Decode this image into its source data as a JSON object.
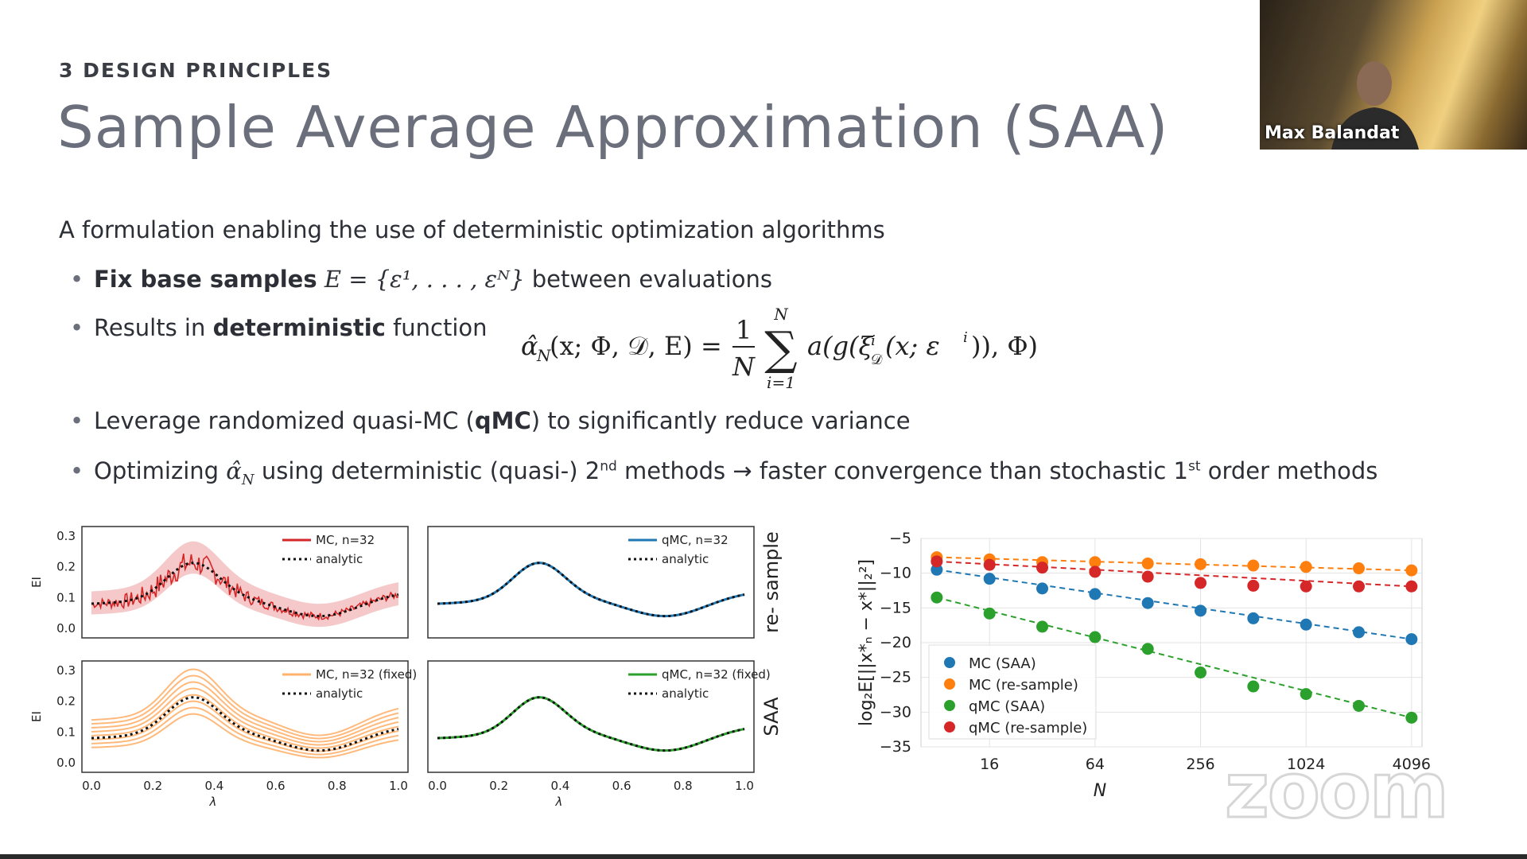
{
  "slide": {
    "section": "3  DESIGN PRINCIPLES",
    "title": "Sample Average Approximation (SAA)",
    "intro": "A formulation enabling the use of deterministic optimization algorithms",
    "bullets": [
      {
        "bold": "Fix base samples",
        "math": "E = {ε¹, . . . , εᴺ}",
        "rest": " between evaluations"
      },
      {
        "pre": "Results in ",
        "bold": "deterministic",
        "rest": " function"
      },
      {
        "pre": "Leverage randomized quasi-MC (",
        "bold": "qMC",
        "rest": ") to significantly reduce variance"
      },
      {
        "pre": "Optimizing ",
        "math": "α̂",
        "sub": "N",
        "mid": " using deterministic (quasi-) 2",
        "sup1": "nd",
        "mid2": "  methods → faster convergence than stochastic 1",
        "sup2": "st",
        "rest": " order methods"
      }
    ],
    "formula": {
      "lhs": "α̂",
      "lhs_sub": "N",
      "args": "(x; Φ, 𝒟, E) =",
      "frac_num": "1",
      "frac_den": "N",
      "sum_top": "N",
      "sum_bot": "i=1",
      "body": "a(g(ξ",
      "body_sup": "i",
      "body_sub": "𝒟",
      "body_rest": "(x; ε",
      "body_sup2": "i",
      "body_end": ")), Φ)"
    }
  },
  "video": {
    "name": "Max Balandat"
  },
  "watermark": "zoom",
  "chart_data": [
    {
      "type": "line",
      "panel": "top-left",
      "ylabel": "EI",
      "xlim": [
        0,
        1
      ],
      "ylim": [
        0,
        0.3
      ],
      "yticks": [
        "0.0",
        "0.1",
        "0.2",
        "0.3"
      ],
      "legend": [
        "MC, n=32",
        "analytic"
      ],
      "color": "#d62728"
    },
    {
      "type": "line",
      "panel": "top-right",
      "xlim": [
        0,
        1
      ],
      "ylim": [
        0,
        0.3
      ],
      "legend": [
        "qMC, n=32",
        "analytic"
      ],
      "side_label": "re- sample",
      "color": "#1f77b4"
    },
    {
      "type": "line",
      "panel": "bottom-left",
      "ylabel": "EI",
      "xlabel": "λ",
      "xlim": [
        0,
        1
      ],
      "ylim": [
        0,
        0.3
      ],
      "xticks": [
        "0.0",
        "0.2",
        "0.4",
        "0.6",
        "0.8",
        "1.0"
      ],
      "yticks": [
        "0.0",
        "0.1",
        "0.2",
        "0.3"
      ],
      "legend": [
        "MC, n=32 (fixed)",
        "analytic"
      ],
      "color": "#ff7f0e"
    },
    {
      "type": "line",
      "panel": "bottom-right",
      "xlabel": "λ",
      "xlim": [
        0,
        1
      ],
      "ylim": [
        0,
        0.3
      ],
      "xticks": [
        "0.0",
        "0.2",
        "0.4",
        "0.6",
        "0.8",
        "1.0"
      ],
      "legend": [
        "qMC, n=32 (fixed)",
        "analytic"
      ],
      "side_label": "SAA",
      "color": "#2ca02c"
    },
    {
      "type": "scatter",
      "panel": "convergence",
      "xlabel": "N",
      "ylabel": "log₂E[||x*ₙ − x*||₂²]",
      "x": [
        8,
        16,
        32,
        64,
        128,
        256,
        512,
        1024,
        2048,
        4096
      ],
      "xticks": [
        "16",
        "64",
        "256",
        "1024",
        "4096"
      ],
      "ylim": [
        -35,
        -5
      ],
      "yticks": [
        "−5",
        "−10",
        "−15",
        "−20",
        "−25",
        "−30",
        "−35"
      ],
      "legend_position": "bottom-left",
      "series": [
        {
          "name": "MC (SAA)",
          "color": "#1f77b4",
          "values": [
            -9.5,
            -10.8,
            -12.2,
            -13.0,
            -14.3,
            -15.4,
            -16.5,
            -17.4,
            -18.5,
            -19.5
          ]
        },
        {
          "name": "MC (re-sample)",
          "color": "#ff7f0e",
          "values": [
            -7.7,
            -8.0,
            -8.4,
            -8.4,
            -8.6,
            -8.7,
            -8.9,
            -9.1,
            -9.3,
            -9.6
          ]
        },
        {
          "name": "qMC (SAA)",
          "color": "#2ca02c",
          "values": [
            -13.5,
            -15.8,
            -17.7,
            -19.2,
            -20.9,
            -24.3,
            -26.3,
            -27.4,
            -29.1,
            -30.8
          ]
        },
        {
          "name": "qMC (re-sample)",
          "color": "#d62728",
          "values": [
            -8.3,
            -8.8,
            -9.2,
            -9.8,
            -10.5,
            -11.4,
            -11.8,
            -11.9,
            -11.9,
            -11.9
          ]
        }
      ]
    }
  ]
}
